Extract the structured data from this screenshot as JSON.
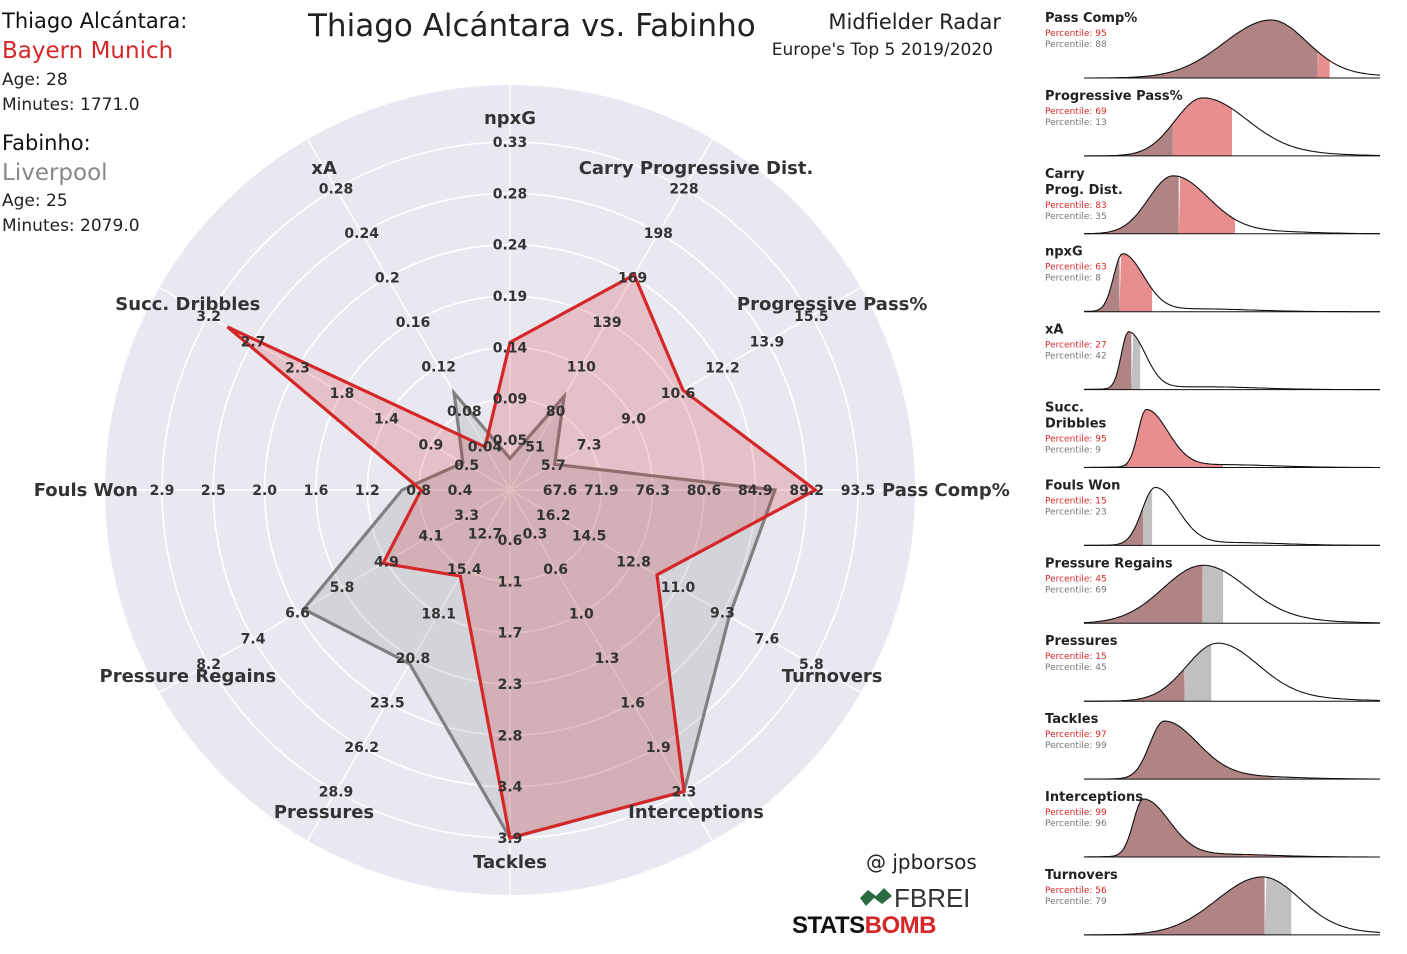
{
  "header": {
    "title": "Thiago Alcántara vs. Fabinho",
    "right_title": "Midfielder Radar",
    "right_subtitle": "Europe's Top 5 2019/2020",
    "credit": "@ jpborsos",
    "fbref_logo": "FBREF",
    "statsbomb_logo_a": "STATS",
    "statsbomb_logo_b": "BOMB"
  },
  "players": [
    {
      "label": "Thiago Alcántara:",
      "team": "Bayern Munich",
      "age": "Age: 28",
      "minutes": "Minutes: 1771.0"
    },
    {
      "label": "Fabinho:",
      "team": "Liverpool",
      "age": "Age: 25",
      "minutes": "Minutes: 2079.0"
    }
  ],
  "colors": {
    "player1": "#d62728",
    "player2": "#808080",
    "background": "#e8e8f0",
    "grid": "#ffffff",
    "density_fill": "#b08384",
    "player1_fill": "#e88e8f",
    "player2_fill": "#c0c0c0"
  },
  "chart_data": [
    {
      "type": "radar",
      "axes": [
        {
          "name": "npxG",
          "ticks": [
            "0.05",
            "0.09",
            "0.14",
            "0.19",
            "0.24",
            "0.28",
            "0.33"
          ],
          "min": 0.0,
          "max": 0.33,
          "p1": 0.14,
          "p2": 0.03
        },
        {
          "name": "Carry Progressive Dist.",
          "ticks": [
            "51",
            "80",
            "110",
            "139",
            "169",
            "198",
            "228"
          ],
          "min": 22,
          "max": 228,
          "p1": 169,
          "p2": 86
        },
        {
          "name": "Progressive Pass%",
          "ticks": [
            "5.7",
            "7.3",
            "9.0",
            "10.6",
            "12.2",
            "13.9",
            "15.5"
          ],
          "min": 4.0,
          "max": 15.5,
          "p1": 10.6,
          "p2": 5.7
        },
        {
          "name": "Pass Comp%",
          "ticks": [
            "67.6",
            "71.9",
            "76.3",
            "80.6",
            "84.9",
            "89.2",
            "93.5"
          ],
          "min": 63.3,
          "max": 93.5,
          "p1": 89.8,
          "p2": 86.3
        },
        {
          "name": "Turnovers",
          "ticks": [
            "16.2",
            "14.5",
            "12.8",
            "11.0",
            "9.3",
            "7.6",
            "5.8"
          ],
          "min": 17.9,
          "max": 5.8,
          "p1": 12.0,
          "p2": 9.1
        },
        {
          "name": "Interceptions",
          "ticks": [
            "0.3",
            "0.6",
            "1.0",
            "1.3",
            "1.6",
            "1.9",
            "2.3"
          ],
          "min": 0.0,
          "max": 2.3,
          "p1": 2.3,
          "p2": 2.3
        },
        {
          "name": "Tackles",
          "ticks": [
            "0.6",
            "1.1",
            "1.7",
            "2.3",
            "2.8",
            "3.4",
            "3.9"
          ],
          "min": 0.0,
          "max": 3.9,
          "p1": 3.9,
          "p2": 3.9
        },
        {
          "name": "Pressures",
          "ticks": [
            "12.7",
            "15.4",
            "18.1",
            "20.8",
            "23.5",
            "26.2",
            "28.9"
          ],
          "min": 10.0,
          "max": 28.9,
          "p1": 15.4,
          "p2": 20.9
        },
        {
          "name": "Pressure Regains",
          "ticks": [
            "3.3",
            "4.1",
            "4.9",
            "5.8",
            "6.6",
            "7.4",
            "8.2"
          ],
          "min": 2.5,
          "max": 8.2,
          "p1": 4.9,
          "p2": 6.4
        },
        {
          "name": "Fouls Won",
          "ticks": [
            "0.4",
            "0.8",
            "1.2",
            "1.6",
            "2.0",
            "2.5",
            "2.9"
          ],
          "min": 0.0,
          "max": 2.9,
          "p1": 0.74,
          "p2": 0.9
        },
        {
          "name": "Succ. Dribbles",
          "ticks": [
            "0.5",
            "0.9",
            "1.4",
            "1.8",
            "2.3",
            "2.7",
            "3.2"
          ],
          "min": 0.0,
          "max": 3.2,
          "p1": 3.0,
          "p2": 0.5
        },
        {
          "name": "xA",
          "ticks": [
            "0.04",
            "0.08",
            "0.12",
            "0.16",
            "0.2",
            "0.24",
            "0.28"
          ],
          "min": 0.0,
          "max": 0.28,
          "p1": 0.04,
          "p2": 0.09
        }
      ]
    },
    {
      "type": "area",
      "panels": [
        {
          "label": [
            "Pass Comp%"
          ],
          "p1": "Percentile: 95",
          "p2": "Percentile: 88",
          "peak": 0.63,
          "width": 0.14,
          "skew": -0.3,
          "p1_frac": 0.83,
          "p2_frac": 0.79
        },
        {
          "label": [
            "Progressive Pass%"
          ],
          "p1": "Percentile: 69",
          "p2": "Percentile: 13",
          "peak": 0.4,
          "width": 0.12,
          "skew": 0.5,
          "p1_frac": 0.5,
          "p2_frac": 0.3
        },
        {
          "label": [
            "Carry",
            "Prog. Dist."
          ],
          "p1": "Percentile: 83",
          "p2": "Percentile: 35",
          "peak": 0.3,
          "width": 0.1,
          "skew": 0.4,
          "p1_frac": 0.51,
          "p2_frac": 0.32
        },
        {
          "label": [
            "npxG"
          ],
          "p1": "Percentile: 63",
          "p2": "Percentile: 8",
          "peak": 0.13,
          "width": 0.05,
          "skew": 0.9,
          "p1_frac": 0.23,
          "p2_frac": 0.12
        },
        {
          "label": [
            "xA"
          ],
          "p1": "Percentile: 27",
          "p2": "Percentile: 42",
          "peak": 0.15,
          "width": 0.04,
          "skew": 0.9,
          "p1_frac": 0.16,
          "p2_frac": 0.19
        },
        {
          "label": [
            "Succ.",
            "Dribbles"
          ],
          "p1": "Percentile: 95",
          "p2": "Percentile: 9",
          "peak": 0.21,
          "width": 0.05,
          "skew": 1.0,
          "p1_frac": 0.47,
          "p2_frac": 0.15
        },
        {
          "label": [
            "Fouls Won"
          ],
          "p1": "Percentile: 15",
          "p2": "Percentile: 23",
          "peak": 0.24,
          "width": 0.06,
          "skew": 0.6,
          "p1_frac": 0.2,
          "p2_frac": 0.23
        },
        {
          "label": [
            "Pressure Regains"
          ],
          "p1": "Percentile: 45",
          "p2": "Percentile: 69",
          "peak": 0.4,
          "width": 0.14,
          "skew": 0.1,
          "p1_frac": 0.4,
          "p2_frac": 0.47
        },
        {
          "label": [
            "Pressures"
          ],
          "p1": "Percentile: 15",
          "p2": "Percentile: 45",
          "peak": 0.45,
          "width": 0.12,
          "skew": 0.3,
          "p1_frac": 0.34,
          "p2_frac": 0.43
        },
        {
          "label": [
            "Tackles"
          ],
          "p1": "Percentile: 97",
          "p2": "Percentile: 99",
          "peak": 0.27,
          "width": 0.08,
          "skew": 0.9,
          "p1_frac": 0.64,
          "p2_frac": 0.72
        },
        {
          "label": [
            "Interceptions"
          ],
          "p1": "Percentile: 99",
          "p2": "Percentile: 96",
          "peak": 0.2,
          "width": 0.06,
          "skew": 1.0,
          "p1_frac": 0.82,
          "p2_frac": 0.54
        },
        {
          "label": [
            "Turnovers"
          ],
          "p1": "Percentile: 56",
          "p2": "Percentile: 79",
          "peak": 0.6,
          "width": 0.14,
          "skew": -0.2,
          "p1_frac": 0.61,
          "p2_frac": 0.7
        }
      ]
    }
  ]
}
